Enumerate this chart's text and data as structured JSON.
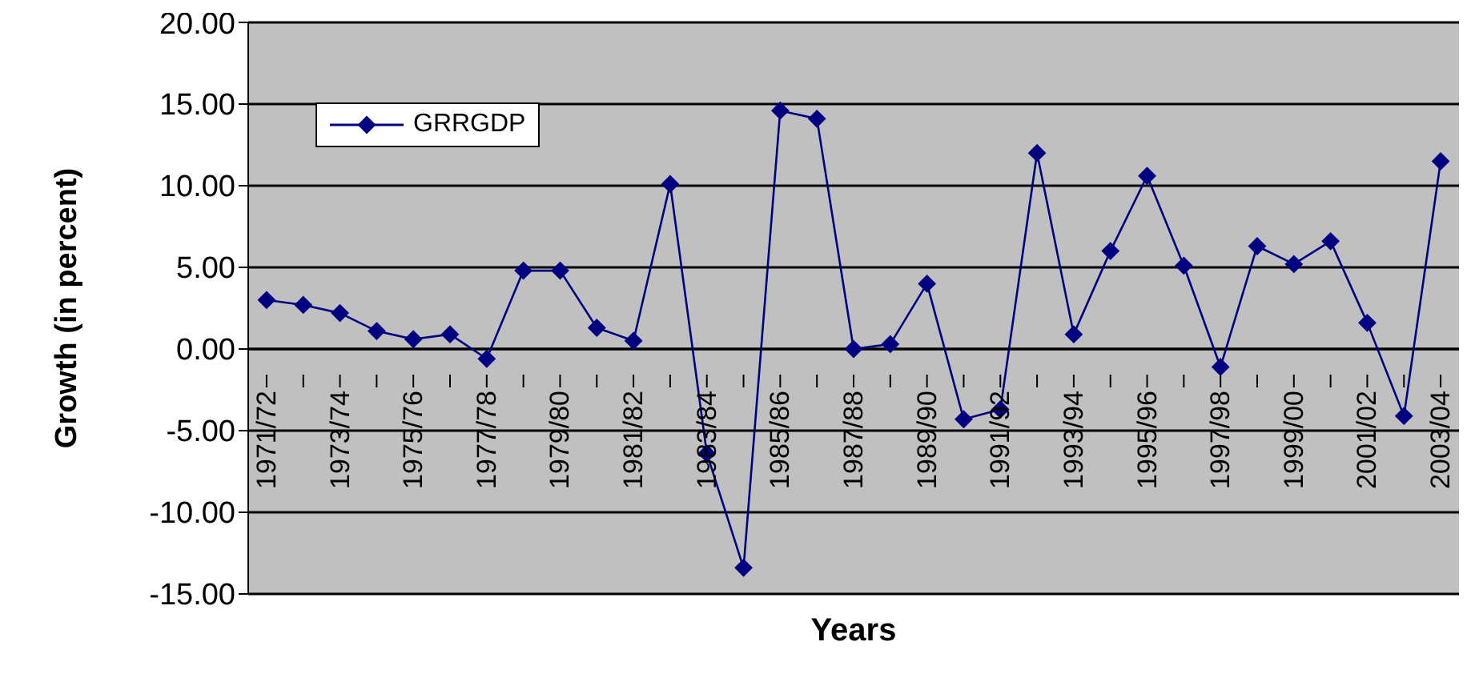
{
  "chart_data": {
    "type": "line",
    "xlabel": "Years",
    "ylabel": "Growth (in percent)",
    "categories": [
      "1971/72",
      null,
      "1973/74",
      null,
      "1975/76",
      null,
      "1977/78",
      null,
      "1979/80",
      null,
      "1981/82",
      null,
      "1983/84",
      null,
      "1985/86",
      null,
      "1987/88",
      null,
      "1989/90",
      null,
      "1991/92",
      null,
      "1993/94",
      null,
      "1995/96",
      null,
      "1997/98",
      null,
      "1999/00",
      null,
      "2001/02",
      null,
      "2003/04"
    ],
    "series": [
      {
        "name": "GRRGDP",
        "color": "#000080",
        "values": [
          3.0,
          2.7,
          2.2,
          1.1,
          0.6,
          0.9,
          -0.6,
          4.8,
          4.8,
          1.3,
          0.5,
          10.1,
          -6.4,
          -13.4,
          14.6,
          14.1,
          0.0,
          0.3,
          4.0,
          -4.3,
          -3.7,
          12.0,
          0.9,
          6.0,
          10.6,
          5.1,
          -1.1,
          6.3,
          5.2,
          6.6,
          1.6,
          -4.1,
          11.5
        ]
      }
    ],
    "ylim": [
      -15,
      20
    ],
    "yticks": [
      {
        "value": -15,
        "label": "-15.00"
      },
      {
        "value": -10,
        "label": "-10.00"
      },
      {
        "value": -5,
        "label": "-5.00"
      },
      {
        "value": 0,
        "label": "0.00"
      },
      {
        "value": 5,
        "label": "5.00"
      },
      {
        "value": 10,
        "label": "10.00"
      },
      {
        "value": 15,
        "label": "15.00"
      },
      {
        "value": 20,
        "label": "20.00"
      }
    ],
    "grid": "y",
    "legend": "top left",
    "marker": "diamond",
    "line_style": "solid"
  }
}
